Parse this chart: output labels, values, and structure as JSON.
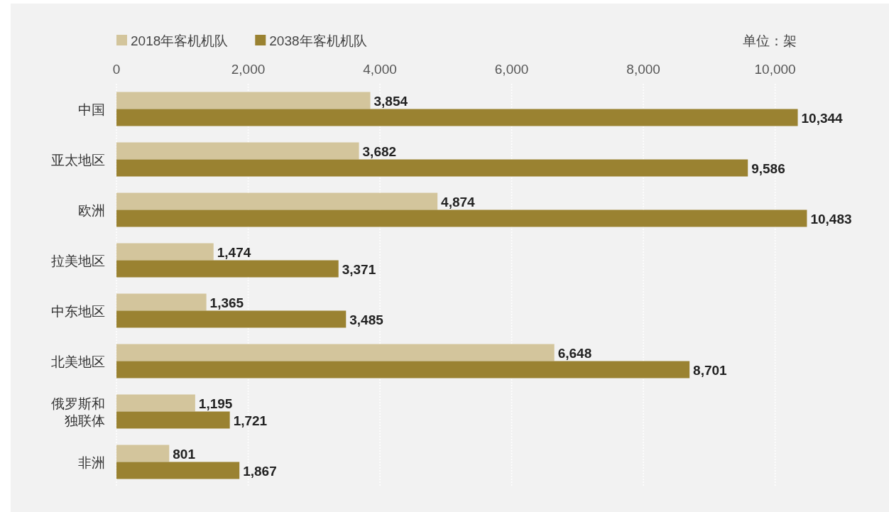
{
  "chart_data": {
    "type": "bar",
    "orientation": "horizontal",
    "categories": [
      "中国",
      "亚太地区",
      "欧洲",
      "拉美地区",
      "中东地区",
      "北美地区",
      "俄罗斯和独联体",
      "非洲"
    ],
    "series": [
      {
        "name": "2018年客机机队",
        "color": "#d3c59c",
        "values": [
          3854,
          3682,
          4874,
          1474,
          1365,
          6648,
          1195,
          801
        ],
        "value_labels": [
          "3,854",
          "3,682",
          "4,874",
          "1,474",
          "1,365",
          "6,648",
          "1,195",
          "801"
        ]
      },
      {
        "name": "2038年客机机队",
        "color": "#9a8231",
        "values": [
          10344,
          9586,
          10483,
          3371,
          3485,
          8701,
          1721,
          1867
        ],
        "value_labels": [
          "10,344",
          "9,586",
          "10,483",
          "3,371",
          "3,485",
          "8,701",
          "1,721",
          "1,867"
        ]
      }
    ],
    "xlim": [
      0,
      10500
    ],
    "xticks": [
      0,
      {
        "value": 2000,
        "label": "2,000"
      },
      {
        "value": 4000,
        "label": "4,000"
      },
      {
        "value": 6000,
        "label": "6,000"
      },
      {
        "value": 8000,
        "label": "8,000"
      },
      {
        "value": 10000,
        "label": "10,000"
      }
    ],
    "grid": "x",
    "legend": "top left",
    "annotations": [
      "单位：架"
    ]
  }
}
